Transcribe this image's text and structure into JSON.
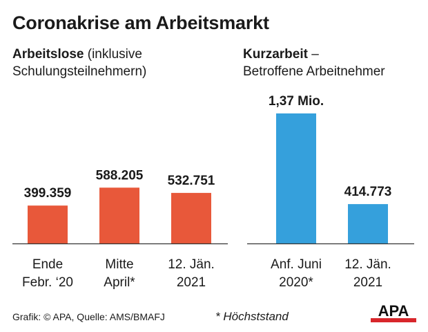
{
  "title": "Coronakrise am Arbeitsmarkt",
  "left_panel": {
    "heading_bold": "Arbeitslose",
    "heading_rest": " (inklusive",
    "heading_line2": "Schulungsteilnehmern)"
  },
  "right_panel": {
    "heading_bold": "Kurzarbeit",
    "heading_rest": " –",
    "heading_line2": "Betroffene Arbeitnehmer"
  },
  "footer": {
    "source": "Grafik: © APA, Quelle: AMS/BMAFJ",
    "footnote": "* Höchststand",
    "logo_text": "APA"
  },
  "colors": {
    "orange": "#e8583a",
    "blue": "#35a0dc",
    "text": "#1a1a1a"
  },
  "chart_data": [
    {
      "type": "bar",
      "title": "Arbeitslose (inklusive Schulungsteilnehmern)",
      "unit": "persons",
      "ylim": [
        0,
        1370000
      ],
      "color": "#e8583a",
      "categories": [
        [
          "Ende",
          "Febr. ‘20"
        ],
        [
          "Mitte",
          "April*"
        ],
        [
          "12. Jän.",
          "2021"
        ]
      ],
      "values": [
        399359,
        588205,
        532751
      ],
      "labels": [
        "399.359",
        "588.205",
        "532.751"
      ]
    },
    {
      "type": "bar",
      "title": "Kurzarbeit – Betroffene Arbeitnehmer",
      "unit": "persons",
      "ylim": [
        0,
        1370000
      ],
      "color": "#35a0dc",
      "categories": [
        [
          "Anf. Juni",
          "2020*"
        ],
        [
          "12. Jän.",
          "2021"
        ]
      ],
      "values": [
        1370000,
        414773
      ],
      "labels": [
        "1,37 Mio.",
        "414.773"
      ]
    }
  ]
}
